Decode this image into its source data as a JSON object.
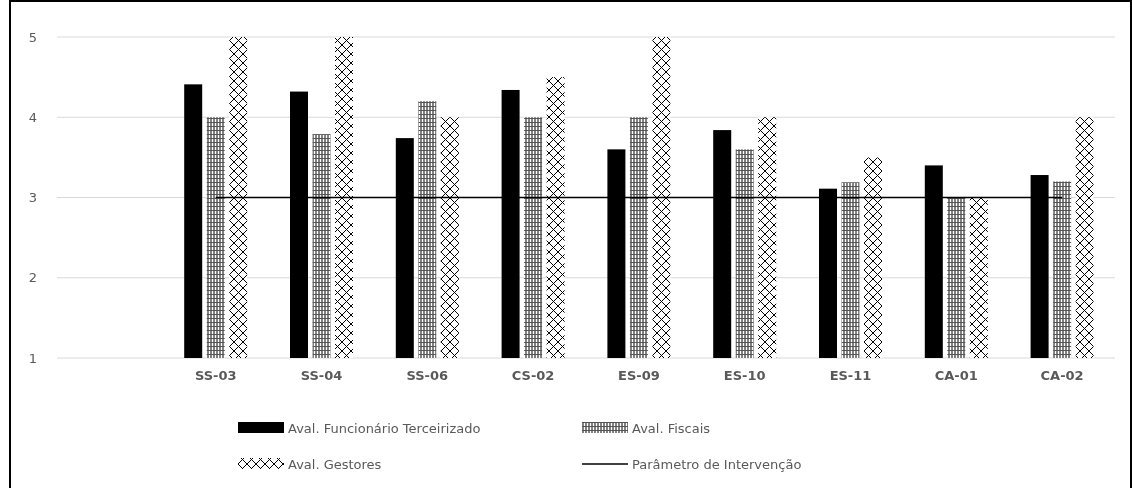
{
  "chart_data": {
    "type": "bar",
    "categories": [
      null,
      "SS-03",
      "SS-04",
      "SS-06",
      "CS-02",
      "ES-09",
      "ES-10",
      "ES-11",
      "CA-01",
      "CA-02"
    ],
    "series": [
      {
        "name": "Aval. Funcionário Terceirizado",
        "color": "#000000",
        "values": [
          null,
          4.41,
          4.32,
          3.74,
          4.34,
          3.6,
          3.84,
          3.11,
          3.4,
          3.28
        ]
      },
      {
        "name": "Aval. Fiscais",
        "color": "#808080",
        "values": [
          null,
          4.0,
          3.79,
          4.2,
          4.0,
          4.0,
          3.6,
          3.19,
          3.0,
          3.2
        ]
      },
      {
        "name": "Aval. Gestores",
        "color": "#000000",
        "values": [
          null,
          5,
          5,
          4.0,
          4.5,
          5,
          4.0,
          3.5,
          3.0,
          4.0
        ]
      },
      {
        "name": "Parâmetro de Intervenção",
        "type": "line",
        "color": "#000000",
        "values": [
          null,
          3,
          3,
          3,
          3,
          3,
          3,
          3,
          3,
          3
        ]
      }
    ],
    "ylim": [
      1,
      5
    ],
    "yticks": [
      1,
      2,
      3,
      4,
      5
    ],
    "grid": "y",
    "legend": "bottom",
    "marker": "none",
    "line_style": "solid"
  }
}
